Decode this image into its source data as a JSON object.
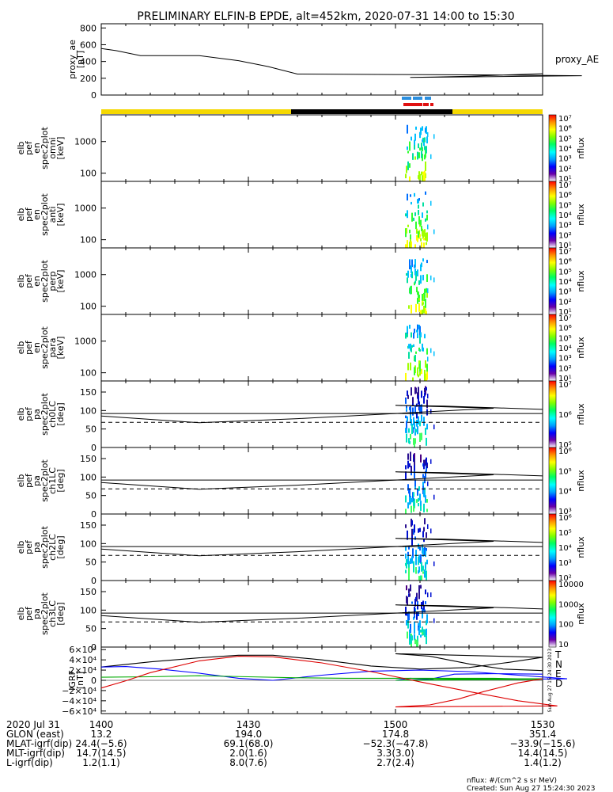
{
  "title": "PRELIMINARY ELFIN-B EPDE, alt=452km, 2020-07-31 14:00 to 15:30",
  "colors": {
    "day_bar": "#f5d800",
    "night_bar": "#000000",
    "blue_marker": "#2a8fe0",
    "red_marker": "#e01010",
    "T": "#000000",
    "N": "#0000ff",
    "E": "#00aa00",
    "D": "#dd0000"
  },
  "chart_data": [
    {
      "id": "proxy_ae",
      "type": "line",
      "ylabel_lines": [
        "proxy_ae",
        "[nT]"
      ],
      "right_label": "proxy_AE",
      "ylim": [
        0,
        850
      ],
      "yticks": [
        "800",
        "600",
        "400",
        "200",
        "0"
      ],
      "ytick_values": [
        800,
        600,
        400,
        200,
        0
      ],
      "x": [
        1400,
        1403,
        1408,
        1420,
        1428,
        1434,
        1440,
        1460,
        1480,
        1498,
        1503,
        1508,
        1515,
        1525,
        1530
      ],
      "y": [
        555,
        530,
        470,
        470,
        410,
        340,
        250,
        245,
        240,
        230,
        210,
        215,
        225,
        245,
        255
      ]
    },
    {
      "id": "spec_omni",
      "type": "heatmap",
      "ylabel_lines": [
        "elb",
        "pef",
        "en",
        "spec2plot",
        "omni",
        "[keV]"
      ],
      "yscale": "log",
      "ylim": [
        55,
        7000
      ],
      "yticks": [
        "1000",
        "100"
      ],
      "ytick_values": [
        1000,
        100
      ],
      "colorbar": {
        "label": "nflux",
        "ticks": [
          "10¹",
          "10²",
          "10³",
          "10⁴",
          "10⁵",
          "10⁶",
          "10⁷"
        ]
      }
    },
    {
      "id": "spec_anti",
      "type": "heatmap",
      "ylabel_lines": [
        "elb",
        "pef",
        "en",
        "spec2plot",
        "anti",
        "[keV]"
      ],
      "yscale": "log",
      "ylim": [
        55,
        7000
      ],
      "yticks": [
        "1000",
        "100"
      ],
      "ytick_values": [
        1000,
        100
      ],
      "colorbar": {
        "label": "nflux",
        "ticks": [
          "10¹",
          "10²",
          "10³",
          "10⁴",
          "10⁵",
          "10⁶",
          "10⁷"
        ]
      }
    },
    {
      "id": "spec_perp",
      "type": "heatmap",
      "ylabel_lines": [
        "elb",
        "pef",
        "en",
        "spec2plot",
        "perp",
        "[keV]"
      ],
      "yscale": "log",
      "ylim": [
        55,
        7000
      ],
      "yticks": [
        "1000",
        "100"
      ],
      "ytick_values": [
        1000,
        100
      ],
      "colorbar": {
        "label": "nflux",
        "ticks": [
          "10¹",
          "10²",
          "10³",
          "10⁴",
          "10⁵",
          "10⁶",
          "10⁷"
        ]
      }
    },
    {
      "id": "spec_para",
      "type": "heatmap",
      "ylabel_lines": [
        "elb",
        "pef",
        "en",
        "spec2plot",
        "para",
        "[keV]"
      ],
      "yscale": "log",
      "ylim": [
        55,
        7000
      ],
      "yticks": [
        "1000",
        "100"
      ],
      "ytick_values": [
        1000,
        100
      ],
      "colorbar": {
        "label": "nflux",
        "ticks": [
          "10¹",
          "10²",
          "10³",
          "10⁴",
          "10⁵",
          "10⁶",
          "10⁷"
        ]
      }
    },
    {
      "id": "pa_ch0",
      "type": "heatmap",
      "ylabel_lines": [
        "elb",
        "pef",
        "pa",
        "spec2plot",
        "ch0LC",
        "[deg]"
      ],
      "ylim": [
        0,
        180
      ],
      "yticks": [
        "150",
        "100",
        "50",
        "0"
      ],
      "ytick_values": [
        150,
        100,
        50,
        0
      ],
      "colorbar": {
        "label": "nflux",
        "ticks": [
          "10⁵",
          "10⁶",
          "10⁷"
        ]
      }
    },
    {
      "id": "pa_ch1",
      "type": "heatmap",
      "ylabel_lines": [
        "elb",
        "pef",
        "pa",
        "spec2plot",
        "ch1LC",
        "[deg]"
      ],
      "ylim": [
        0,
        180
      ],
      "yticks": [
        "150",
        "100",
        "50",
        "0"
      ],
      "ytick_values": [
        150,
        100,
        50,
        0
      ],
      "colorbar": {
        "label": "nflux",
        "ticks": [
          "10³",
          "10⁴",
          "10⁵",
          "10⁶"
        ]
      }
    },
    {
      "id": "pa_ch2",
      "type": "heatmap",
      "ylabel_lines": [
        "elb",
        "pef",
        "pa",
        "spec2plot",
        "ch2LC",
        "[deg]"
      ],
      "ylim": [
        0,
        180
      ],
      "yticks": [
        "150",
        "100",
        "50",
        "0"
      ],
      "ytick_values": [
        150,
        100,
        50,
        0
      ],
      "colorbar": {
        "label": "nflux",
        "ticks": [
          "10²",
          "10³",
          "10⁴",
          "10⁵",
          "10⁶"
        ]
      }
    },
    {
      "id": "pa_ch3",
      "type": "heatmap",
      "ylabel_lines": [
        "elb",
        "pef",
        "pa",
        "spec2plot",
        "ch3LC",
        "[deg]"
      ],
      "ylim": [
        0,
        180
      ],
      "yticks": [
        "150",
        "100",
        "50",
        "0"
      ],
      "ytick_values": [
        150,
        100,
        50,
        0
      ],
      "colorbar": {
        "label": "nflux",
        "ticks": [
          "10",
          "100",
          "1000",
          "10000"
        ]
      }
    },
    {
      "id": "igrf",
      "type": "line",
      "ylabel_lines": [
        "IGRF",
        "[nT]"
      ],
      "ylim": [
        -65000,
        65000
      ],
      "yticks": [
        "6×10⁴",
        "4×10⁴",
        "2×10⁴",
        "0",
        "−2×10⁴",
        "−4×10⁴",
        "−6×10⁴"
      ],
      "ytick_values": [
        60000,
        40000,
        20000,
        0,
        -20000,
        -40000,
        -60000
      ],
      "legend": [
        "T",
        "N",
        "E",
        "D"
      ],
      "series": [
        {
          "name": "T",
          "x": [
            1400,
            1410,
            1420,
            1428,
            1435,
            1445,
            1455,
            1465,
            1475,
            1483,
            1490,
            1500,
            1507,
            1515,
            1522,
            1530
          ],
          "y": [
            26000,
            36000,
            44000,
            49000,
            49000,
            40000,
            28000,
            22000,
            25000,
            35000,
            45000,
            52000,
            47000,
            32000,
            22000,
            19000
          ]
        },
        {
          "name": "N",
          "x": [
            1400,
            1405,
            1412,
            1420,
            1428,
            1435,
            1445,
            1455,
            1465,
            1475,
            1485,
            1495,
            1500,
            1503,
            1507,
            1512,
            1520,
            1530
          ],
          "y": [
            26000,
            27000,
            22000,
            14000,
            4000,
            0,
            10000,
            18000,
            20000,
            17000,
            10000,
            3000,
            0,
            4000,
            2000,
            12000,
            13000,
            12000
          ]
        },
        {
          "name": "E",
          "x": [
            1400,
            1410,
            1420,
            1430,
            1440,
            1450,
            1460,
            1470,
            1480,
            1490,
            1500,
            1510,
            1520,
            1530
          ],
          "y": [
            6000,
            7000,
            9000,
            7000,
            5000,
            4000,
            4000,
            4000,
            4000,
            2000,
            0,
            2000,
            3000,
            3000
          ]
        },
        {
          "name": "D",
          "x": [
            1400,
            1405,
            1410,
            1420,
            1428,
            1435,
            1445,
            1455,
            1465,
            1475,
            1485,
            1493,
            1500,
            1507,
            1513,
            1518,
            1525,
            1530
          ],
          "y": [
            -15000,
            -1000,
            15000,
            38000,
            47000,
            46000,
            34000,
            17000,
            -3000,
            -22000,
            -40000,
            -50000,
            -52000,
            -48000,
            -36000,
            -22000,
            -5000,
            3000
          ]
        }
      ]
    }
  ],
  "ephemeris": {
    "row_labels": [
      "2020 Jul 31",
      "GLON (east)",
      "MLAT-igrf(dip)",
      "MLT-igrf(dip)",
      "L-igrf(dip)"
    ],
    "columns": [
      {
        "x": 1400,
        "values": [
          "1400",
          "13.2",
          "24.4(−5.6)",
          "14.7(14.5)",
          "1.2(1.1)"
        ]
      },
      {
        "x": 1430,
        "values": [
          "1430",
          "194.0",
          "69.1(68.0)",
          "2.0(1.6)",
          "8.0(7.6)"
        ]
      },
      {
        "x": 1500,
        "values": [
          "1500",
          "174.8",
          "−52.3(−47.8)",
          "3.3(3.0)",
          "2.7(2.4)"
        ]
      },
      {
        "x": 1530,
        "values": [
          "1530",
          "351.4",
          "−33.9(−15.6)",
          "14.4(14.5)",
          "1.4(1.2)"
        ]
      }
    ]
  },
  "footer": {
    "units": "nflux: #/(cm^2 s sr MeV)",
    "created": "Created: Sun Aug 27 15:24:30 2023",
    "side_stamp": "Sun Aug 27 15:24:30 2023"
  }
}
